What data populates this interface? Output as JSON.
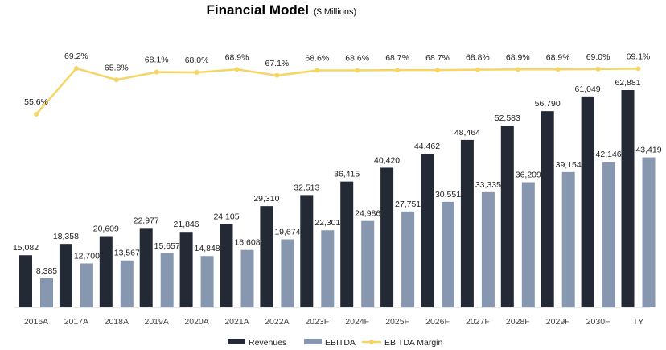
{
  "chart_data": {
    "type": "bar",
    "title": "Financial Model",
    "subtitle": "($ Millions)",
    "categories": [
      "2016A",
      "2017A",
      "2018A",
      "2019A",
      "2020A",
      "2021A",
      "2022A",
      "2023F",
      "2024F",
      "2025F",
      "2026F",
      "2027F",
      "2028F",
      "2029F",
      "2030F",
      "TY"
    ],
    "series": [
      {
        "name": "Revenues",
        "kind": "bar",
        "color": "#232a35",
        "values": [
          15082,
          18358,
          20609,
          22977,
          21846,
          24105,
          29310,
          32513,
          36415,
          40420,
          44462,
          48464,
          52583,
          56790,
          61049,
          62881
        ],
        "labels": [
          "15,082",
          "18,358",
          "20,609",
          "22,977",
          "21,846",
          "24,105",
          "29,310",
          "32,513",
          "36,415",
          "40,420",
          "44,462",
          "48,464",
          "52,583",
          "56,790",
          "61,049",
          "62,881"
        ]
      },
      {
        "name": "EBITDA",
        "kind": "bar",
        "color": "#8797b0",
        "values": [
          8385,
          12700,
          13567,
          15657,
          14848,
          16608,
          19674,
          22301,
          24986,
          27751,
          30551,
          33335,
          36209,
          39154,
          42146,
          43419
        ],
        "labels": [
          "8,385",
          "12,700",
          "13,567",
          "15,657",
          "14,848",
          "16,608",
          "19,674",
          "22,301",
          "24,986",
          "27,751",
          "30,551",
          "33,335",
          "36,209",
          "39,154",
          "42,146",
          "43,419"
        ]
      },
      {
        "name": "EBITDA Margin",
        "kind": "line",
        "color": "#f5d565",
        "values": [
          55.6,
          69.2,
          65.8,
          68.1,
          68.0,
          68.9,
          67.1,
          68.6,
          68.6,
          68.7,
          68.7,
          68.8,
          68.9,
          68.9,
          69.0,
          69.1
        ],
        "labels": [
          "55.6%",
          "69.2%",
          "65.8%",
          "68.1%",
          "68.0%",
          "68.9%",
          "67.1%",
          "68.6%",
          "68.6%",
          "68.7%",
          "68.7%",
          "68.8%",
          "68.9%",
          "68.9%",
          "69.0%",
          "69.1%"
        ]
      }
    ],
    "ylim": [
      0,
      75000
    ],
    "y2lim": [
      0,
      75
    ],
    "grid": false,
    "legend": "bottom"
  }
}
